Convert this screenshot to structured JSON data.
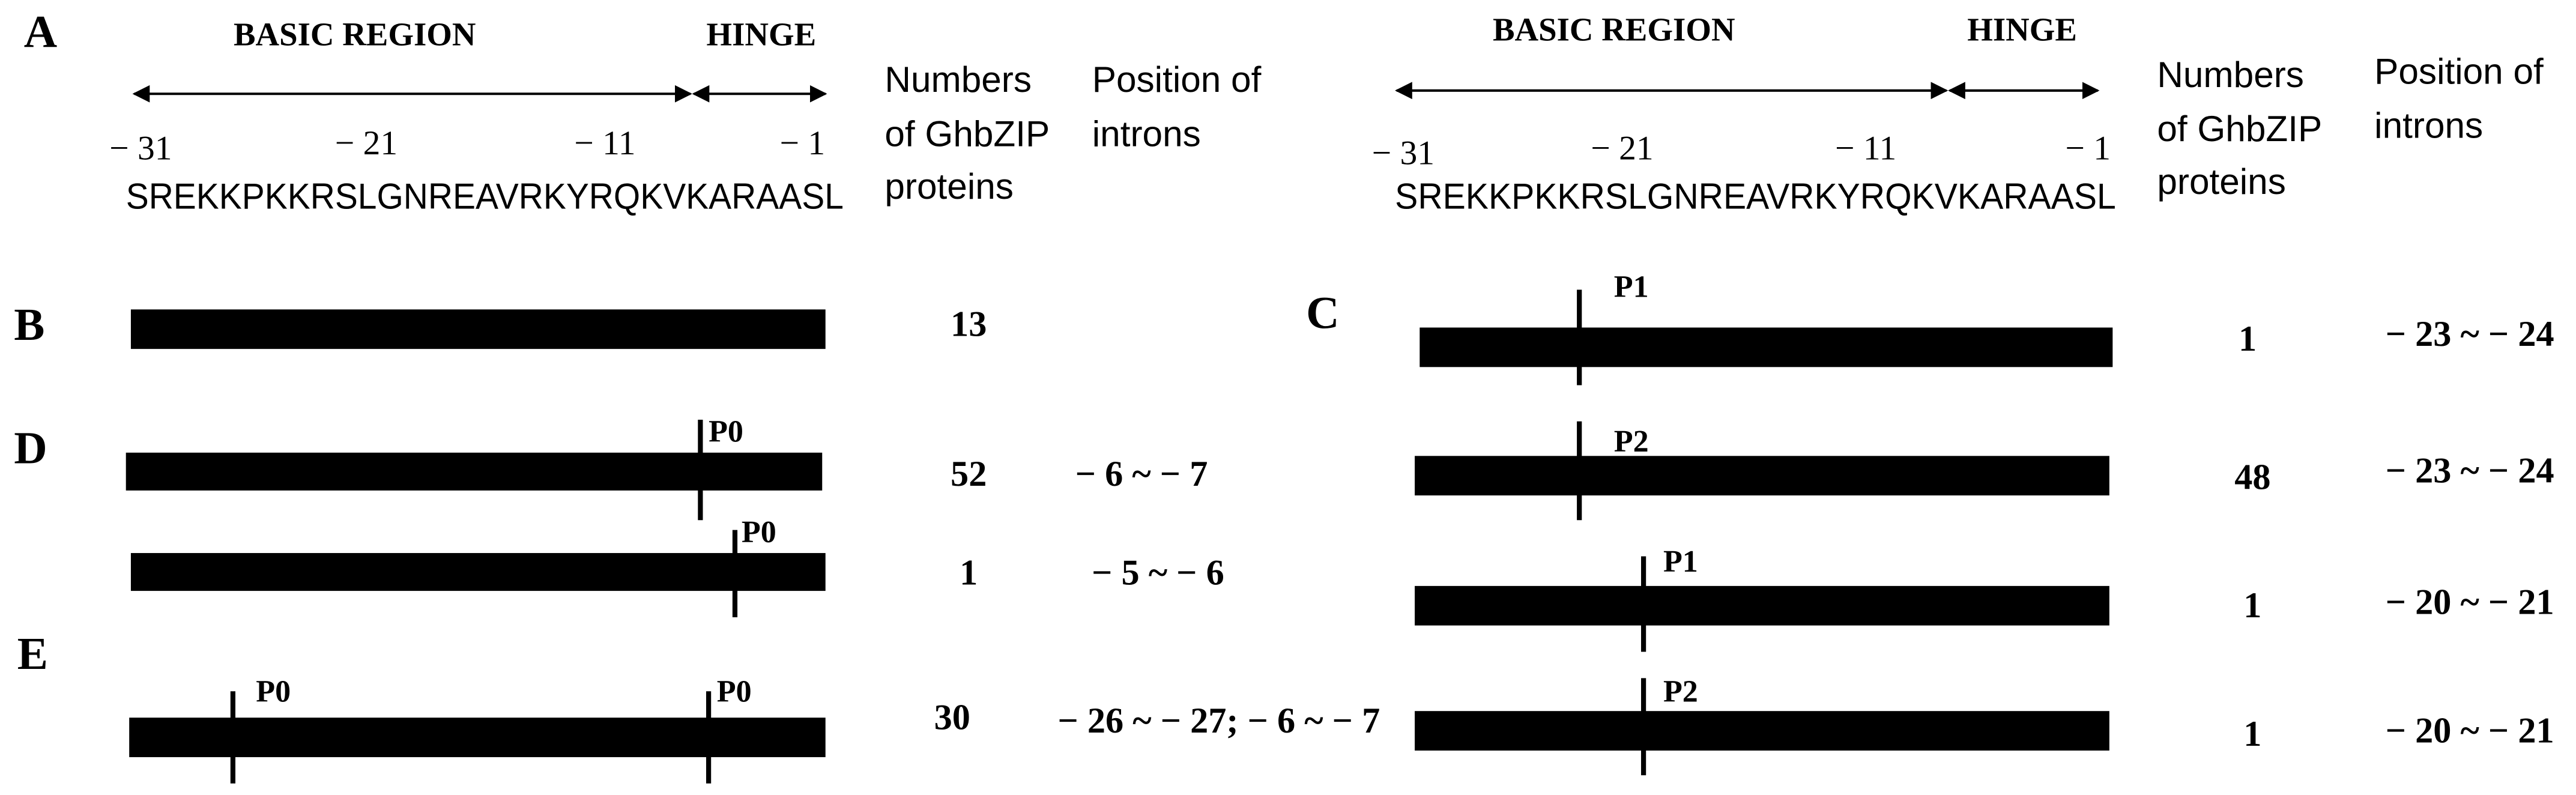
{
  "panel_labels": [
    "A",
    "B",
    "C",
    "D",
    "E"
  ],
  "left_header": {
    "basic_region": "BASIC REGION",
    "hinge": "HINGE",
    "positions": [
      "− 31",
      "− 21",
      "− 11",
      "− 1"
    ],
    "sequence": "SREKKPKKRSLGNREAVRKYRQKVKARAASL",
    "count_header": [
      "Numbers",
      "of GhbZIP",
      "proteins"
    ],
    "intron_header": [
      "Position of",
      "introns"
    ]
  },
  "right_header": {
    "basic_region": "BASIC REGION",
    "hinge": "HINGE",
    "positions": [
      "− 31",
      "− 21",
      "− 11",
      "− 1"
    ],
    "sequence": "SREKKPKKRSLGNREAVRKYRQKVKARAASL",
    "count_header": [
      "Numbers",
      "of GhbZIP",
      "proteins"
    ],
    "intron_header": [
      "Position of",
      "introns"
    ]
  },
  "left_rows": [
    {
      "count": "13"
    },
    {
      "markers": [
        "P0"
      ],
      "count": "52",
      "introns": "− 6 ~ − 7"
    },
    {
      "markers": [
        "P0"
      ],
      "count": "1",
      "introns": "− 5 ~ − 6"
    },
    {
      "markers": [
        "P0",
        "P0"
      ],
      "count": "30",
      "introns": "− 26 ~ − 27; − 6 ~ − 7"
    }
  ],
  "right_rows": [
    {
      "markers": [
        "P1"
      ],
      "count": "1",
      "introns": "− 23 ~ − 24"
    },
    {
      "markers": [
        "P2"
      ],
      "count": "48",
      "introns": "− 23 ~ − 24"
    },
    {
      "markers": [
        "P1"
      ],
      "count": "1",
      "introns": "− 20 ~ − 21"
    },
    {
      "markers": [
        "P2"
      ],
      "count": "1",
      "introns": "− 20 ~ − 21"
    }
  ]
}
